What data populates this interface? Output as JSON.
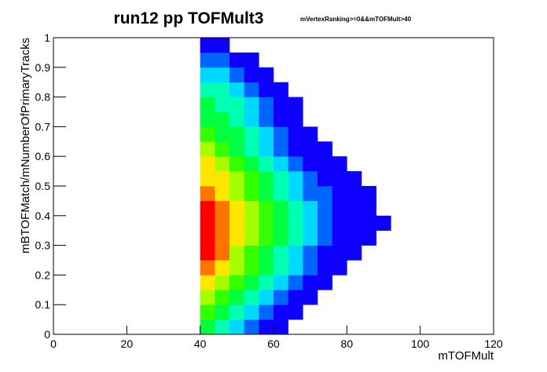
{
  "chart_data": {
    "type": "heatmap",
    "title": "run12 pp TOFMult3",
    "subtitle": "mVertexRanking>=0&&mTOFMult>40",
    "x_label": "mTOFMult",
    "y_label": "mBTOFMatch/mNumberOfPrimaryTracks",
    "xlim": [
      0,
      120
    ],
    "ylim": [
      0,
      1
    ],
    "xticks": [
      0,
      20,
      40,
      60,
      80,
      100,
      120
    ],
    "yticks": [
      0,
      0.1,
      0.2,
      0.3,
      0.4,
      0.5,
      0.6,
      0.7,
      0.8,
      0.9,
      1
    ],
    "x_bins": [
      40,
      44,
      48,
      52,
      56,
      60,
      64,
      68,
      72,
      76,
      80,
      84,
      88,
      92,
      96,
      100,
      104
    ],
    "y_bins": [
      0,
      0.05,
      0.1,
      0.15,
      0.2,
      0.25,
      0.3,
      0.35,
      0.4,
      0.45,
      0.5,
      0.55,
      0.6,
      0.65,
      0.7,
      0.75,
      0.8,
      0.85,
      0.9,
      0.95,
      1
    ],
    "z": [
      [
        5,
        4,
        3,
        2,
        1,
        1,
        0,
        0,
        0,
        0,
        0,
        0,
        0,
        0,
        0,
        0
      ],
      [
        6,
        5,
        4,
        3,
        2,
        1,
        1,
        0,
        0,
        0,
        0,
        0,
        0,
        0,
        0,
        0
      ],
      [
        7,
        6,
        5,
        4,
        3,
        2,
        1,
        1,
        0,
        0,
        0,
        0,
        0,
        0,
        0,
        0
      ],
      [
        8,
        7,
        6,
        5,
        4,
        3,
        2,
        1,
        1,
        0,
        0,
        0,
        0,
        0,
        0,
        0
      ],
      [
        9,
        8,
        7,
        6,
        5,
        4,
        3,
        2,
        1,
        1,
        0,
        0,
        0,
        0,
        0,
        0
      ],
      [
        10,
        9,
        7,
        6,
        5,
        4,
        3,
        2,
        1,
        1,
        1,
        0,
        0,
        0,
        0,
        0
      ],
      [
        10,
        9,
        8,
        7,
        6,
        5,
        4,
        3,
        2,
        1,
        1,
        1,
        0,
        0,
        0,
        0
      ],
      [
        10,
        9,
        8,
        7,
        6,
        5,
        4,
        3,
        2,
        1,
        1,
        1,
        1,
        0,
        0,
        0
      ],
      [
        10,
        9,
        8,
        7,
        6,
        5,
        4,
        3,
        2,
        1,
        1,
        1,
        0,
        0,
        0,
        0
      ],
      [
        9,
        8,
        7,
        6,
        5,
        4,
        3,
        2,
        2,
        1,
        1,
        1,
        0,
        0,
        0,
        0
      ],
      [
        8,
        8,
        7,
        6,
        5,
        4,
        3,
        2,
        1,
        1,
        1,
        0,
        0,
        0,
        0,
        0
      ],
      [
        8,
        7,
        6,
        5,
        4,
        3,
        2,
        1,
        1,
        1,
        0,
        0,
        0,
        0,
        0,
        0
      ],
      [
        7,
        6,
        5,
        4,
        3,
        2,
        1,
        1,
        1,
        0,
        0,
        0,
        0,
        0,
        0,
        0
      ],
      [
        6,
        5,
        5,
        4,
        3,
        2,
        1,
        1,
        0,
        0,
        0,
        0,
        0,
        0,
        0,
        0
      ],
      [
        5,
        5,
        4,
        3,
        2,
        1,
        1,
        0,
        0,
        0,
        0,
        0,
        0,
        0,
        0,
        0
      ],
      [
        5,
        4,
        4,
        3,
        2,
        1,
        1,
        0,
        0,
        0,
        0,
        0,
        0,
        0,
        0,
        0
      ],
      [
        4,
        4,
        3,
        2,
        1,
        1,
        0,
        0,
        0,
        0,
        0,
        0,
        0,
        0,
        0,
        0
      ],
      [
        3,
        3,
        2,
        1,
        1,
        0,
        0,
        0,
        0,
        0,
        0,
        0,
        0,
        0,
        0,
        0
      ],
      [
        2,
        2,
        1,
        1,
        0,
        0,
        0,
        0,
        0,
        0,
        0,
        0,
        0,
        0,
        0,
        0
      ],
      [
        1,
        1,
        0,
        0,
        0,
        0,
        0,
        0,
        0,
        0,
        0,
        0,
        0,
        0,
        0,
        0
      ]
    ]
  }
}
